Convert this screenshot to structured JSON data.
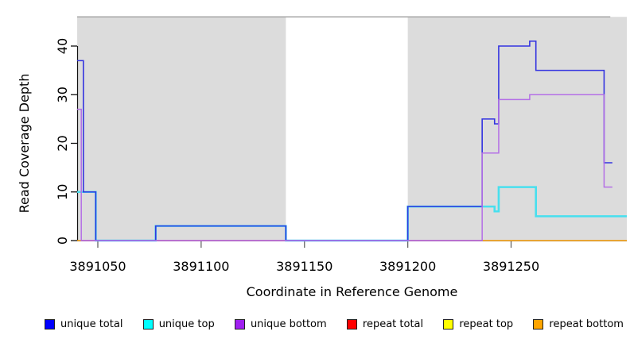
{
  "figure": {
    "xlabel": "Coordinate in Reference Genome",
    "ylabel": "Read Coverage Depth"
  },
  "chart_data": {
    "type": "line",
    "subtype": "step-coverage-plot",
    "title": "",
    "xlabel": "Coordinate in Reference Genome",
    "ylabel": "Read Coverage Depth",
    "xlim": [
      3891040,
      3891306
    ],
    "ylim": [
      0,
      46
    ],
    "grid": false,
    "legend_position": "bottom",
    "x_ticks": [
      3891050,
      3891100,
      3891150,
      3891200,
      3891250
    ],
    "x_tick_labels": [
      "3891050",
      "3891100",
      "3891150",
      "3891200",
      "3891250"
    ],
    "y_ticks": [
      0,
      10,
      20,
      30,
      40
    ],
    "y_tick_labels": [
      "0",
      "10",
      "20",
      "30",
      "40"
    ],
    "shaded_regions": {
      "fill_color": "#dcdcdc",
      "top_value": 46,
      "ranges": [
        [
          3891040,
          3891141
        ],
        [
          3891200,
          3891306
        ]
      ],
      "top_border_color": "#a6a6a6",
      "top_border_range": [
        3891040,
        3891298
      ]
    },
    "series": [
      {
        "name": "unique total",
        "legend_color": "#0000ff",
        "line_color": "#3434e0",
        "line_width": 1.6,
        "z": 5,
        "segments": [
          [
            3891040,
            3891043,
            37
          ],
          [
            3891043,
            3891049,
            10
          ],
          [
            3891049,
            3891078,
            0
          ],
          [
            3891078,
            3891141,
            3
          ],
          [
            3891141,
            3891200,
            0
          ],
          [
            3891200,
            3891236,
            7
          ],
          [
            3891236,
            3891242,
            25
          ],
          [
            3891242,
            3891244,
            24
          ],
          [
            3891244,
            3891259,
            40
          ],
          [
            3891259,
            3891262,
            41
          ],
          [
            3891262,
            3891295,
            35
          ],
          [
            3891295,
            3891299,
            16
          ]
        ]
      },
      {
        "name": "unique top",
        "legend_color": "#00ffff",
        "line_color": "#48dfee",
        "line_width": 2.6,
        "z": 4,
        "segments": [
          [
            3891040,
            3891049,
            10
          ],
          [
            3891049,
            3891078,
            0
          ],
          [
            3891078,
            3891141,
            3
          ],
          [
            3891141,
            3891200,
            0
          ],
          [
            3891200,
            3891242,
            7
          ],
          [
            3891242,
            3891244,
            6
          ],
          [
            3891244,
            3891262,
            11
          ],
          [
            3891262,
            3891306,
            5
          ]
        ]
      },
      {
        "name": "unique bottom",
        "legend_color": "#a020f0",
        "line_color": "#b46fe6",
        "line_width": 1.5,
        "z": 6,
        "segments": [
          [
            3891040,
            3891042,
            27
          ],
          [
            3891042,
            3891236,
            0
          ],
          [
            3891236,
            3891244,
            18
          ],
          [
            3891244,
            3891259,
            29
          ],
          [
            3891259,
            3891295,
            30
          ],
          [
            3891295,
            3891299,
            11
          ]
        ]
      },
      {
        "name": "repeat total",
        "legend_color": "#ff0000",
        "line_color": "#e8506e",
        "line_width": 1.4,
        "z": 1,
        "segments": [
          [
            3891042,
            3891236,
            0
          ]
        ]
      },
      {
        "name": "repeat top",
        "legend_color": "#ffff00",
        "line_color": "#f0f00a",
        "line_width": 1.4,
        "z": 2,
        "segments": [],
        "note": "coverage 0 throughout, hidden beneath other series"
      },
      {
        "name": "repeat bottom",
        "legend_color": "#ffa500",
        "line_color": "#ffa510",
        "line_width": 1.6,
        "z": 3,
        "segments": [
          [
            3891040,
            3891042,
            0
          ],
          [
            3891236,
            3891306,
            0
          ]
        ]
      }
    ]
  }
}
